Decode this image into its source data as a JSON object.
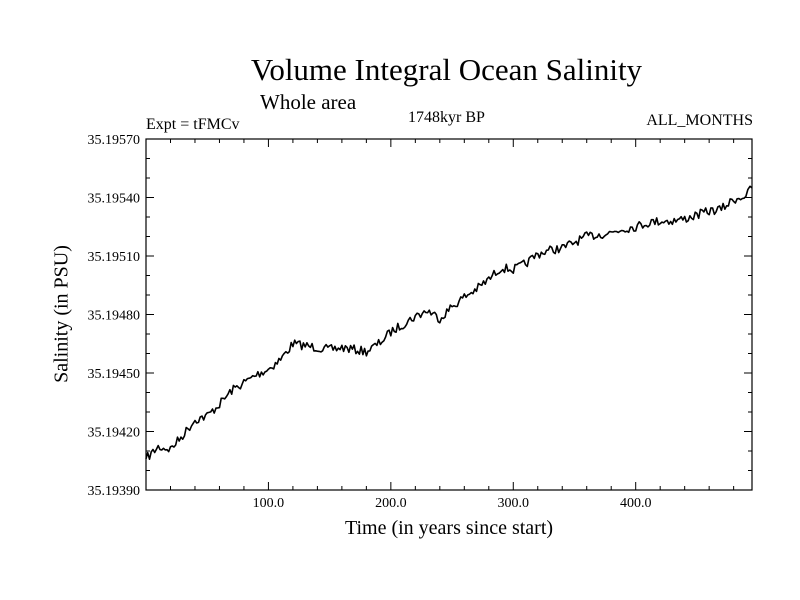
{
  "chart_data": {
    "type": "line",
    "title": "Volume Integral Ocean Salinity",
    "subtitle": "Whole area",
    "experiment_label": "Expt = tFMCv",
    "period_label": "1748kyr BP",
    "months_label": "ALL_MONTHS",
    "xlabel": "Time (in years since start)",
    "ylabel": "Salinity (in PSU)",
    "xlim": [
      0,
      495
    ],
    "ylim": [
      35.1939,
      35.1957
    ],
    "x_ticks": [
      100,
      200,
      300,
      400
    ],
    "x_tick_labels": [
      "100.0",
      "200.0",
      "300.0",
      "400.0"
    ],
    "y_ticks": [
      35.1939,
      35.1942,
      35.1945,
      35.1948,
      35.1951,
      35.1954,
      35.1957
    ],
    "y_tick_labels": [
      "35.19390",
      "35.19420",
      "35.19450",
      "35.19480",
      "35.19510",
      "35.19540",
      "35.19570"
    ],
    "grid": false,
    "series": [
      {
        "name": "Salinity",
        "x": [
          0,
          10,
          20,
          30,
          40,
          50,
          60,
          70,
          80,
          90,
          100,
          110,
          120,
          130,
          140,
          150,
          160,
          170,
          180,
          190,
          200,
          210,
          220,
          230,
          240,
          250,
          260,
          270,
          280,
          290,
          300,
          310,
          320,
          330,
          340,
          350,
          360,
          370,
          380,
          390,
          400,
          410,
          420,
          430,
          440,
          450,
          460,
          470,
          480,
          490,
          495
        ],
        "values": [
          35.19406,
          35.19412,
          35.19411,
          35.19418,
          35.19426,
          35.19428,
          35.19434,
          35.19441,
          35.19445,
          35.19449,
          35.19452,
          35.19457,
          35.19465,
          35.19464,
          35.19463,
          35.19462,
          35.19463,
          35.19462,
          35.19461,
          35.19465,
          35.19471,
          35.19475,
          35.19479,
          35.19482,
          35.19478,
          35.19484,
          35.19489,
          35.19493,
          35.19498,
          35.19504,
          35.19503,
          35.19506,
          35.19511,
          35.19513,
          35.19514,
          35.19517,
          35.1952,
          35.19521,
          35.19522,
          35.19524,
          35.19525,
          35.19527,
          35.19528,
          35.19528,
          35.19529,
          35.19531,
          35.19533,
          35.19534,
          35.19539,
          35.19541,
          35.19545
        ]
      }
    ]
  }
}
